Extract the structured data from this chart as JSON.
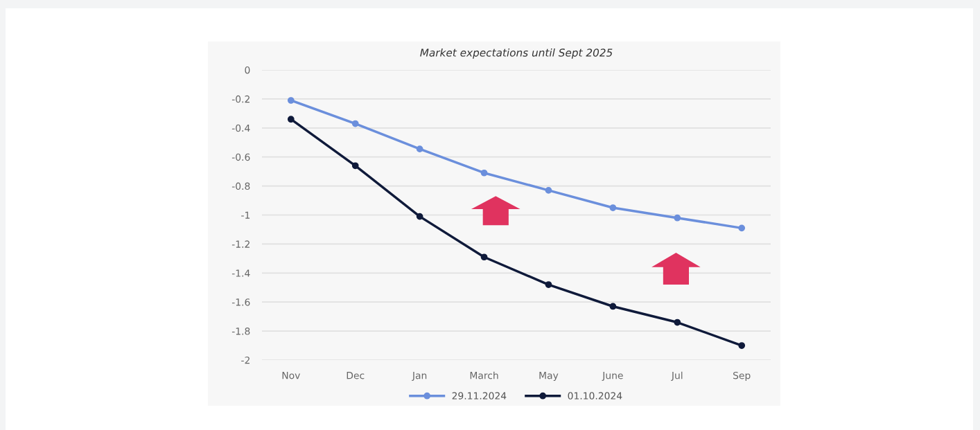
{
  "chart_data": {
    "type": "line",
    "title": "Market expectations until Sept 2025",
    "categories": [
      "Nov",
      "Dec",
      "Jan",
      "March",
      "May",
      "June",
      "Jul",
      "Sep"
    ],
    "series": [
      {
        "name": "29.11.2024",
        "color": "#6b8fdc",
        "values": [
          -0.21,
          -0.37,
          -0.545,
          -0.71,
          -0.83,
          -0.95,
          -1.02,
          -1.09
        ]
      },
      {
        "name": "01.10.2024",
        "color": "#0f1a3a",
        "values": [
          -0.34,
          -0.66,
          -1.01,
          -1.29,
          -1.48,
          -1.63,
          -1.74,
          -1.9
        ]
      }
    ],
    "ylim": [
      -2,
      0
    ],
    "yticks": [
      0,
      -0.2,
      -0.4,
      -0.6,
      -0.8,
      -1,
      -1.2,
      -1.4,
      -1.6,
      -1.8,
      -2
    ],
    "grid": "y",
    "legend": "bottom",
    "marker": "circle",
    "line_style": "solid"
  }
}
